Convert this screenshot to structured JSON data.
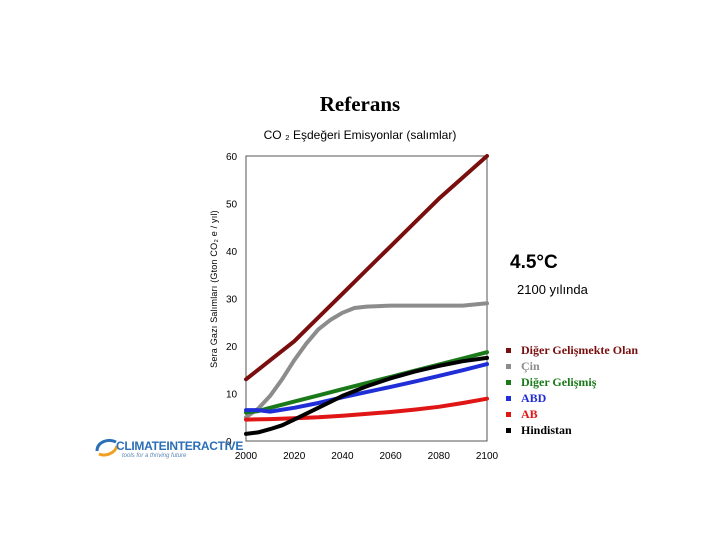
{
  "chart_data": {
    "type": "line",
    "title": "Referans",
    "subtitle": "CO ₂ Eşdeğeri Emisyonlar (salımlar)",
    "ylabel": "Sera Gazı Salımları (Gton CO₂ e / yıl)",
    "xlabel": "",
    "xlim": [
      2000,
      2100
    ],
    "ylim": [
      0,
      60
    ],
    "xticks": [
      2000,
      2020,
      2040,
      2060,
      2080,
      2100
    ],
    "yticks": [
      0,
      10,
      20,
      30,
      40,
      50,
      60
    ],
    "grid": false,
    "legend_position": "right",
    "series": [
      {
        "name": "Diğer Gelişmekte Olan",
        "color": "#7a0e0e",
        "x": [
          2000,
          2005,
          2010,
          2020,
          2030,
          2040,
          2050,
          2060,
          2070,
          2080,
          2090,
          2100
        ],
        "y": [
          13.0,
          15.0,
          17.0,
          21.0,
          26.0,
          31.0,
          36.0,
          41.0,
          46.0,
          51.0,
          55.5,
          60.0
        ]
      },
      {
        "name": "Çin",
        "color": "#8c8c8c",
        "x": [
          2000,
          2005,
          2010,
          2015,
          2020,
          2025,
          2030,
          2035,
          2040,
          2045,
          2050,
          2060,
          2070,
          2080,
          2090,
          2100
        ],
        "y": [
          5.0,
          6.8,
          9.5,
          13.0,
          17.0,
          20.5,
          23.5,
          25.5,
          27.0,
          28.0,
          28.3,
          28.5,
          28.5,
          28.5,
          28.5,
          29.0
        ]
      },
      {
        "name": "Diğer Gelişmiş",
        "color": "#1a7a1a",
        "x": [
          2000,
          2005,
          2010,
          2020,
          2030,
          2040,
          2050,
          2060,
          2070,
          2080,
          2090,
          2100
        ],
        "y": [
          6.0,
          6.3,
          7.0,
          8.3,
          9.6,
          10.9,
          12.2,
          13.5,
          14.8,
          16.1,
          17.4,
          18.7
        ]
      },
      {
        "name": "ABD",
        "color": "#1f2ed6",
        "x": [
          2000,
          2005,
          2010,
          2020,
          2030,
          2040,
          2050,
          2060,
          2070,
          2080,
          2090,
          2100
        ],
        "y": [
          6.5,
          6.5,
          6.2,
          7.0,
          8.0,
          9.2,
          10.3,
          11.4,
          12.5,
          13.7,
          14.9,
          16.2
        ]
      },
      {
        "name": "AB",
        "color": "#e01515",
        "x": [
          2000,
          2010,
          2020,
          2030,
          2040,
          2050,
          2060,
          2070,
          2080,
          2090,
          2100
        ],
        "y": [
          4.5,
          4.6,
          4.8,
          5.0,
          5.3,
          5.7,
          6.1,
          6.6,
          7.2,
          8.0,
          8.9
        ]
      },
      {
        "name": "Hindistan",
        "color": "#000000",
        "x": [
          2000,
          2005,
          2010,
          2015,
          2020,
          2030,
          2040,
          2050,
          2060,
          2070,
          2080,
          2090,
          2100
        ],
        "y": [
          1.5,
          1.8,
          2.5,
          3.3,
          4.5,
          7.0,
          9.5,
          11.5,
          13.2,
          14.6,
          15.8,
          16.8,
          17.5
        ]
      }
    ]
  },
  "annotations": {
    "temperature": "4.5°C",
    "year_note": "2100 yılında"
  },
  "logo": {
    "name_part1": "CLIMATE",
    "name_part2": "INTERACTIVE",
    "tagline": "tools for a thriving future"
  }
}
